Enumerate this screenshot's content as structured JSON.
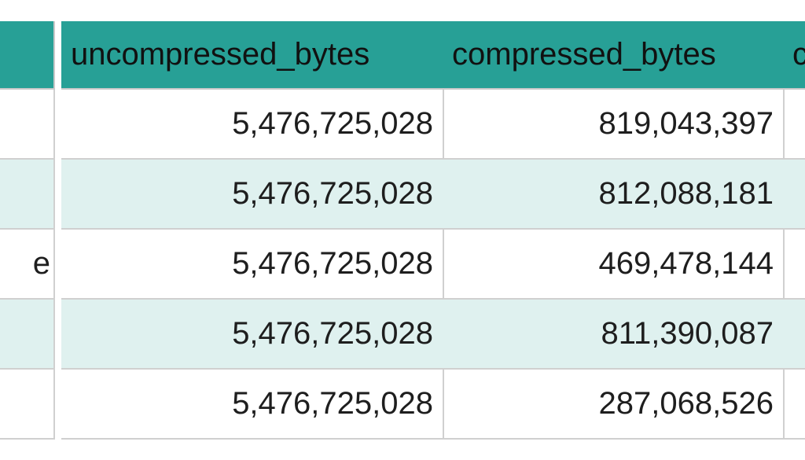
{
  "table": {
    "header": [
      "uncompressed_bytes",
      "compressed_bytes",
      "c"
    ],
    "rows": [
      {
        "cells": [
          "5,476,725,028",
          "819,043,397"
        ]
      },
      {
        "cells": [
          "5,476,725,028",
          "812,088,181"
        ]
      },
      {
        "lead": "e",
        "cells": [
          "5,476,725,028",
          "469,478,144"
        ]
      },
      {
        "cells": [
          "5,476,725,028",
          "811,390,087"
        ]
      },
      {
        "cells": [
          "5,476,725,028",
          "287,068,526"
        ]
      }
    ]
  }
}
